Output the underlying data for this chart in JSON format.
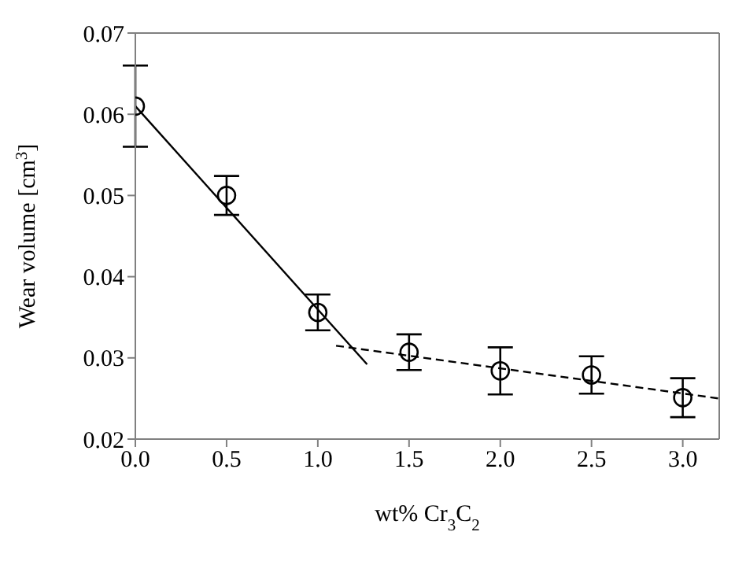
{
  "chart_data": {
    "type": "scatter",
    "xlabel": "wt% Cr$_{3}$C$_{2}$",
    "ylabel": "Wear volume [cm$^{3}$]",
    "xlim": [
      0,
      3.2
    ],
    "xticks": [
      {
        "value": 0,
        "label": "0.0"
      },
      0.5,
      {
        "value": 1,
        "label": "1.0"
      },
      1.5,
      {
        "value": 2,
        "label": "2.0"
      },
      2.5,
      {
        "value": 3,
        "label": "3.0"
      }
    ],
    "ylim": [
      0.02,
      0.07
    ],
    "yticks": [
      0.02,
      0.03,
      0.04,
      0.05,
      0.06,
      0.07
    ],
    "marker": "circle",
    "series": [
      {
        "color": "#000000",
        "x": [
          0,
          0.5,
          1,
          1.5,
          2,
          2.5,
          3
        ],
        "values": [
          0.061,
          0.05,
          0.0356,
          0.0307,
          0.0284,
          0.0279,
          0.0251
        ],
        "errors": [
          0.005,
          0.0024,
          0.0022,
          0.0022,
          0.0029,
          0.0023,
          0.0024
        ]
      },
      {
        "type": "line",
        "color": "#000000",
        "line_style": "solid",
        "marker": "none",
        "x": [
          0,
          1.27
        ],
        "values": [
          0.061,
          0.0292
        ]
      },
      {
        "type": "line",
        "color": "#000000",
        "line_style": "dashed",
        "marker": "none",
        "x": [
          1.1,
          3.2
        ],
        "values": [
          0.0315,
          0.025
        ]
      }
    ]
  }
}
